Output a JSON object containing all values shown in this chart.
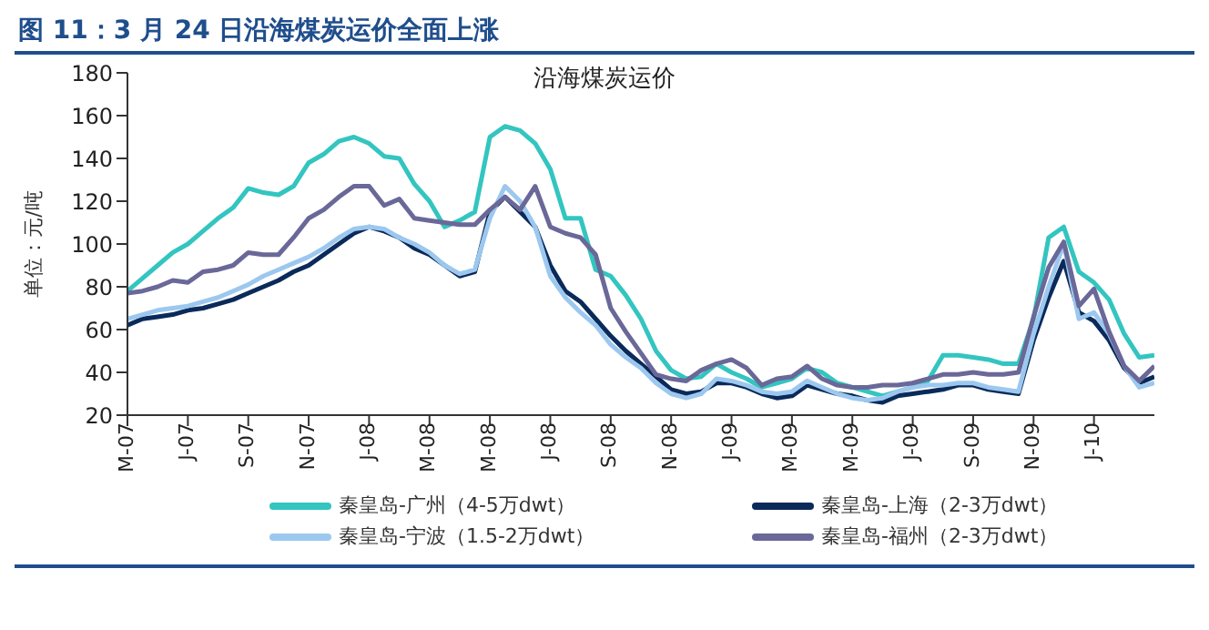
{
  "chart_data": {
    "type": "line",
    "title": "图 11：3 月 24 日沿海煤炭运价全面上涨",
    "subtitle": "沿海煤炭运价",
    "ylabel": "单位：元/吨",
    "categories": [
      "M-07",
      null,
      null,
      null,
      "J-07",
      null,
      null,
      null,
      "S-07",
      null,
      null,
      null,
      "N-07",
      null,
      null,
      null,
      "J-08",
      null,
      null,
      null,
      "M-08",
      null,
      null,
      null,
      "M-08",
      null,
      null,
      null,
      "J-08",
      null,
      null,
      null,
      "S-08",
      null,
      null,
      null,
      "N-08",
      null,
      null,
      null,
      "J-09",
      null,
      null,
      null,
      "M-09",
      null,
      null,
      null,
      "M-09",
      null,
      null,
      null,
      "J-09",
      null,
      null,
      null,
      "S-09",
      null,
      null,
      null,
      "N-09",
      null,
      null,
      null,
      "J-10",
      null,
      null,
      null,
      null
    ],
    "series": [
      {
        "name": "秦皇岛-广州（4-5万dwt）",
        "color": "#33c5c0",
        "values": [
          78,
          84,
          90,
          96,
          100,
          106,
          112,
          117,
          126,
          124,
          123,
          127,
          138,
          142,
          148,
          150,
          147,
          141,
          140,
          128,
          120,
          108,
          111,
          115,
          150,
          155,
          153,
          147,
          135,
          112,
          112,
          88,
          85,
          76,
          65,
          50,
          41,
          37,
          38,
          44,
          40,
          37,
          33,
          35,
          37,
          42,
          40,
          35,
          33,
          31,
          29,
          31,
          33,
          36,
          48,
          48,
          47,
          46,
          44,
          44,
          65,
          103,
          108,
          87,
          82,
          74,
          58,
          47,
          48
        ]
      },
      {
        "name": "秦皇岛-上海（2-3万dwt）",
        "color": "#0a2a5a",
        "values": [
          62,
          65,
          66,
          67,
          69,
          70,
          72,
          74,
          77,
          80,
          83,
          87,
          90,
          95,
          100,
          105,
          108,
          106,
          103,
          98,
          95,
          90,
          85,
          87,
          115,
          122,
          115,
          108,
          90,
          78,
          73,
          65,
          57,
          50,
          44,
          38,
          32,
          30,
          31,
          35,
          35,
          33,
          30,
          28,
          29,
          34,
          32,
          30,
          29,
          27,
          26,
          29,
          30,
          31,
          32,
          34,
          34,
          32,
          31,
          30,
          55,
          75,
          92,
          68,
          64,
          55,
          42,
          35,
          38
        ]
      },
      {
        "name": "秦皇岛-宁波（1.5-2万dwt）",
        "color": "#9cc8ef",
        "values": [
          65,
          67,
          69,
          70,
          71,
          73,
          75,
          78,
          81,
          85,
          88,
          91,
          94,
          98,
          103,
          107,
          108,
          107,
          103,
          100,
          96,
          90,
          86,
          88,
          112,
          127,
          120,
          108,
          85,
          75,
          68,
          62,
          53,
          47,
          42,
          35,
          30,
          28,
          30,
          37,
          36,
          34,
          31,
          30,
          31,
          36,
          33,
          30,
          28,
          27,
          28,
          31,
          33,
          34,
          34,
          35,
          35,
          33,
          32,
          31,
          58,
          80,
          100,
          65,
          68,
          58,
          43,
          33,
          35
        ]
      },
      {
        "name": "秦皇岛-福州（2-3万dwt）",
        "color": "#6a6899",
        "values": [
          77,
          78,
          80,
          83,
          82,
          87,
          88,
          90,
          96,
          95,
          95,
          103,
          112,
          116,
          122,
          127,
          127,
          118,
          121,
          112,
          111,
          110,
          109,
          109,
          116,
          122,
          116,
          127,
          108,
          105,
          103,
          95,
          70,
          59,
          49,
          39,
          37,
          36,
          41,
          44,
          46,
          42,
          34,
          37,
          38,
          43,
          37,
          34,
          33,
          33,
          34,
          34,
          35,
          37,
          39,
          39,
          40,
          39,
          39,
          40,
          66,
          89,
          101,
          71,
          79,
          59,
          43,
          36,
          43
        ]
      }
    ],
    "ylim": [
      20,
      180
    ],
    "yticks": [
      20,
      40,
      60,
      80,
      100,
      120,
      140,
      160,
      180
    ],
    "legend": "bottom"
  }
}
